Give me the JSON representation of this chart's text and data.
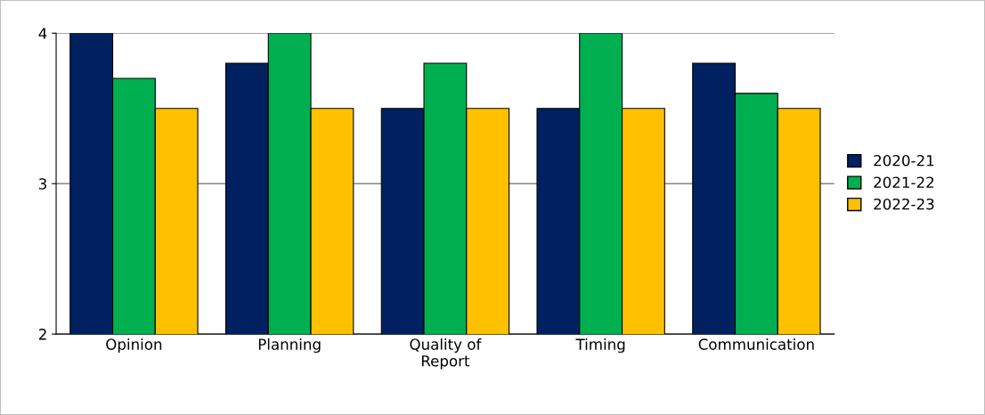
{
  "chart_data": {
    "type": "bar",
    "categories": [
      "Opinion",
      "Planning",
      "Quality of\nReport",
      "Timing",
      "Communication"
    ],
    "series": [
      {
        "name": "2020-21",
        "color": "#002060",
        "values": [
          4,
          3.8,
          3.5,
          3.5,
          3.8
        ]
      },
      {
        "name": "2021-22",
        "color": "#00b050",
        "values": [
          3.7,
          4,
          3.8,
          4,
          3.6
        ]
      },
      {
        "name": "2022-23",
        "color": "#ffc000",
        "values": [
          3.5,
          3.5,
          3.5,
          3.5,
          3.5
        ]
      }
    ],
    "ylim": [
      2,
      4
    ],
    "yticks": [
      2,
      3,
      4
    ],
    "grid": "y",
    "legend": "right"
  }
}
